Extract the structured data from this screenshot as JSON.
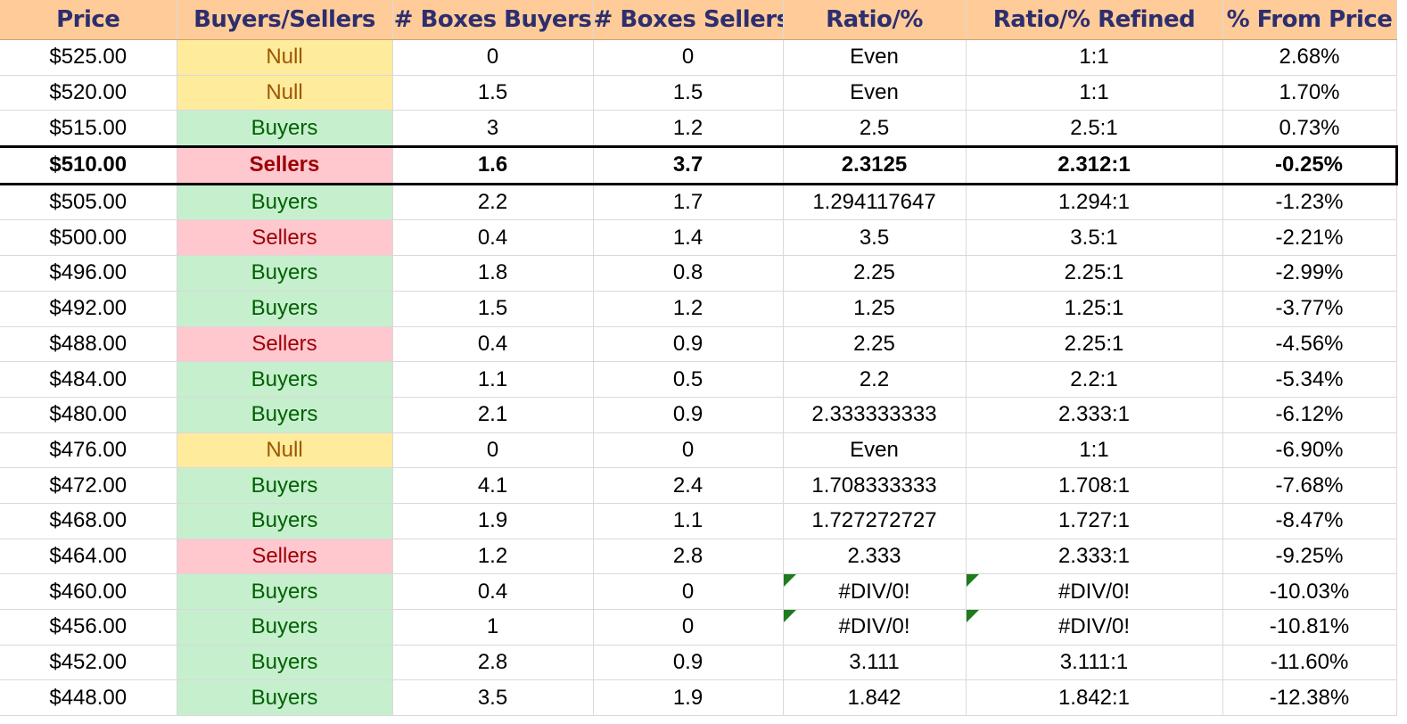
{
  "table": {
    "headers": [
      "Price",
      "Buyers/Sellers",
      "# Boxes Buyers",
      "# Boxes Sellers",
      "Ratio/%",
      "Ratio/% Refined",
      "% From Price"
    ],
    "current_row_index": 3,
    "colors": {
      "header_bg": "#ffcc99",
      "header_text": "#2e2e6e",
      "buyers_bg": "#c6efce",
      "buyers_text": "#006100",
      "sellers_bg": "#ffc7ce",
      "sellers_text": "#9c0006",
      "null_bg": "#ffeb9c",
      "null_text": "#9c5700",
      "error_flag": "#1e7b1e"
    },
    "rows": [
      {
        "price": "$525.00",
        "side": "Null",
        "boxes_buyers": "0",
        "boxes_sellers": "0",
        "ratio": "Even",
        "ratio_refined": "1:1",
        "from_price": "2.68%",
        "error": false
      },
      {
        "price": "$520.00",
        "side": "Null",
        "boxes_buyers": "1.5",
        "boxes_sellers": "1.5",
        "ratio": "Even",
        "ratio_refined": "1:1",
        "from_price": "1.70%",
        "error": false
      },
      {
        "price": "$515.00",
        "side": "Buyers",
        "boxes_buyers": "3",
        "boxes_sellers": "1.2",
        "ratio": "2.5",
        "ratio_refined": "2.5:1",
        "from_price": "0.73%",
        "error": false
      },
      {
        "price": "$510.00",
        "side": "Sellers",
        "boxes_buyers": "1.6",
        "boxes_sellers": "3.7",
        "ratio": "2.3125",
        "ratio_refined": "2.312:1",
        "from_price": "-0.25%",
        "error": false
      },
      {
        "price": "$505.00",
        "side": "Buyers",
        "boxes_buyers": "2.2",
        "boxes_sellers": "1.7",
        "ratio": "1.294117647",
        "ratio_refined": "1.294:1",
        "from_price": "-1.23%",
        "error": false
      },
      {
        "price": "$500.00",
        "side": "Sellers",
        "boxes_buyers": "0.4",
        "boxes_sellers": "1.4",
        "ratio": "3.5",
        "ratio_refined": "3.5:1",
        "from_price": "-2.21%",
        "error": false
      },
      {
        "price": "$496.00",
        "side": "Buyers",
        "boxes_buyers": "1.8",
        "boxes_sellers": "0.8",
        "ratio": "2.25",
        "ratio_refined": "2.25:1",
        "from_price": "-2.99%",
        "error": false
      },
      {
        "price": "$492.00",
        "side": "Buyers",
        "boxes_buyers": "1.5",
        "boxes_sellers": "1.2",
        "ratio": "1.25",
        "ratio_refined": "1.25:1",
        "from_price": "-3.77%",
        "error": false
      },
      {
        "price": "$488.00",
        "side": "Sellers",
        "boxes_buyers": "0.4",
        "boxes_sellers": "0.9",
        "ratio": "2.25",
        "ratio_refined": "2.25:1",
        "from_price": "-4.56%",
        "error": false
      },
      {
        "price": "$484.00",
        "side": "Buyers",
        "boxes_buyers": "1.1",
        "boxes_sellers": "0.5",
        "ratio": "2.2",
        "ratio_refined": "2.2:1",
        "from_price": "-5.34%",
        "error": false
      },
      {
        "price": "$480.00",
        "side": "Buyers",
        "boxes_buyers": "2.1",
        "boxes_sellers": "0.9",
        "ratio": "2.333333333",
        "ratio_refined": "2.333:1",
        "from_price": "-6.12%",
        "error": false
      },
      {
        "price": "$476.00",
        "side": "Null",
        "boxes_buyers": "0",
        "boxes_sellers": "0",
        "ratio": "Even",
        "ratio_refined": "1:1",
        "from_price": "-6.90%",
        "error": false
      },
      {
        "price": "$472.00",
        "side": "Buyers",
        "boxes_buyers": "4.1",
        "boxes_sellers": "2.4",
        "ratio": "1.708333333",
        "ratio_refined": "1.708:1",
        "from_price": "-7.68%",
        "error": false
      },
      {
        "price": "$468.00",
        "side": "Buyers",
        "boxes_buyers": "1.9",
        "boxes_sellers": "1.1",
        "ratio": "1.727272727",
        "ratio_refined": "1.727:1",
        "from_price": "-8.47%",
        "error": false
      },
      {
        "price": "$464.00",
        "side": "Sellers",
        "boxes_buyers": "1.2",
        "boxes_sellers": "2.8",
        "ratio": "2.333",
        "ratio_refined": "2.333:1",
        "from_price": "-9.25%",
        "error": false
      },
      {
        "price": "$460.00",
        "side": "Buyers",
        "boxes_buyers": "0.4",
        "boxes_sellers": "0",
        "ratio": "#DIV/0!",
        "ratio_refined": "#DIV/0!",
        "from_price": "-10.03%",
        "error": true
      },
      {
        "price": "$456.00",
        "side": "Buyers",
        "boxes_buyers": "1",
        "boxes_sellers": "0",
        "ratio": "#DIV/0!",
        "ratio_refined": "#DIV/0!",
        "from_price": "-10.81%",
        "error": true
      },
      {
        "price": "$452.00",
        "side": "Buyers",
        "boxes_buyers": "2.8",
        "boxes_sellers": "0.9",
        "ratio": "3.111",
        "ratio_refined": "3.111:1",
        "from_price": "-11.60%",
        "error": false
      },
      {
        "price": "$448.00",
        "side": "Buyers",
        "boxes_buyers": "3.5",
        "boxes_sellers": "1.9",
        "ratio": "1.842",
        "ratio_refined": "1.842:1",
        "from_price": "-12.38%",
        "error": false
      }
    ]
  }
}
